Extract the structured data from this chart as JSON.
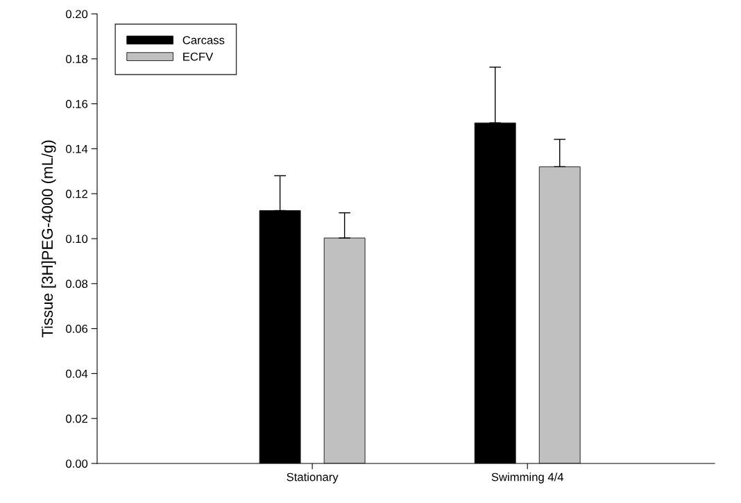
{
  "chart_data": {
    "type": "bar",
    "ylabel": "Tissue [3H]PEG-4000 (mL/g)",
    "categories": [
      "Stationary",
      "Swimming 4/4"
    ],
    "series": [
      {
        "name": "Carcass",
        "color": "#000000",
        "values": [
          0.1125,
          0.1515
        ],
        "errors": [
          [
            0.1125,
            0.128
          ],
          [
            0.1515,
            0.1763
          ]
        ]
      },
      {
        "name": "ECFV",
        "color": "#c0c0c0",
        "values": [
          0.1003,
          0.132
        ],
        "errors": [
          [
            0.1003,
            0.1115
          ],
          [
            0.132,
            0.1442
          ]
        ]
      }
    ],
    "ylim": [
      0,
      0.2
    ],
    "yticks": [
      {
        "value": 0,
        "label": "0.00"
      },
      {
        "value": 0.02,
        "label": "0.02"
      },
      {
        "value": 0.04,
        "label": "0.04"
      },
      {
        "value": 0.06,
        "label": "0.06"
      },
      {
        "value": 0.08,
        "label": "0.08"
      },
      {
        "value": 0.1,
        "label": "0.10"
      },
      {
        "value": 0.12,
        "label": "0.12"
      },
      {
        "value": 0.14,
        "label": "0.14"
      },
      {
        "value": 0.16,
        "label": "0.16"
      },
      {
        "value": 0.18,
        "label": "0.18"
      },
      {
        "value": 0.2,
        "label": "0.20"
      }
    ],
    "legend": "top left",
    "grid": false
  }
}
